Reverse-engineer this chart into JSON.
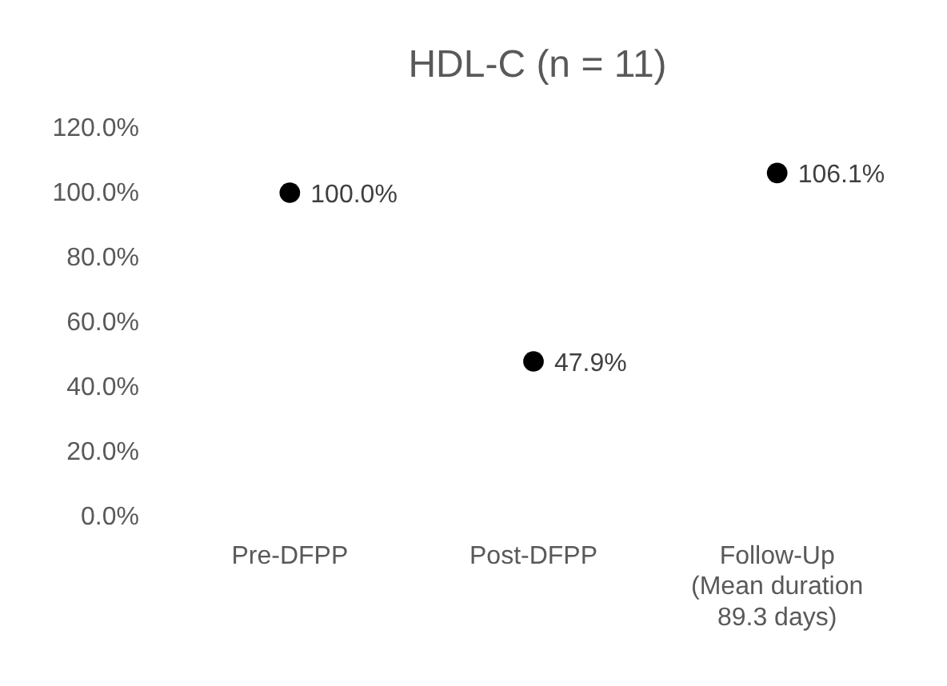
{
  "chart_data": {
    "type": "scatter",
    "title": "HDL-C (n = 11)",
    "categories": [
      "Pre-DFPP",
      "Post-DFPP",
      "Follow-Up (Mean duration 89.3 days)"
    ],
    "series": [
      {
        "color": "#000000",
        "values": [
          100.0,
          47.9,
          106.1
        ],
        "value_labels": [
          "100.0%",
          "47.9%",
          "106.1%"
        ]
      }
    ],
    "ylim": [
      0,
      120
    ],
    "yticks": [
      {
        "value": 0,
        "label": "0.0%"
      },
      {
        "value": 20,
        "label": "20.0%"
      },
      {
        "value": 40,
        "label": "40.0%"
      },
      {
        "value": 60,
        "label": "60.0%"
      },
      {
        "value": 80,
        "label": "80.0%"
      },
      {
        "value": 100,
        "label": "100.0%"
      },
      {
        "value": 120,
        "label": "120.0%"
      }
    ],
    "marker": "circle",
    "grid": false
  }
}
